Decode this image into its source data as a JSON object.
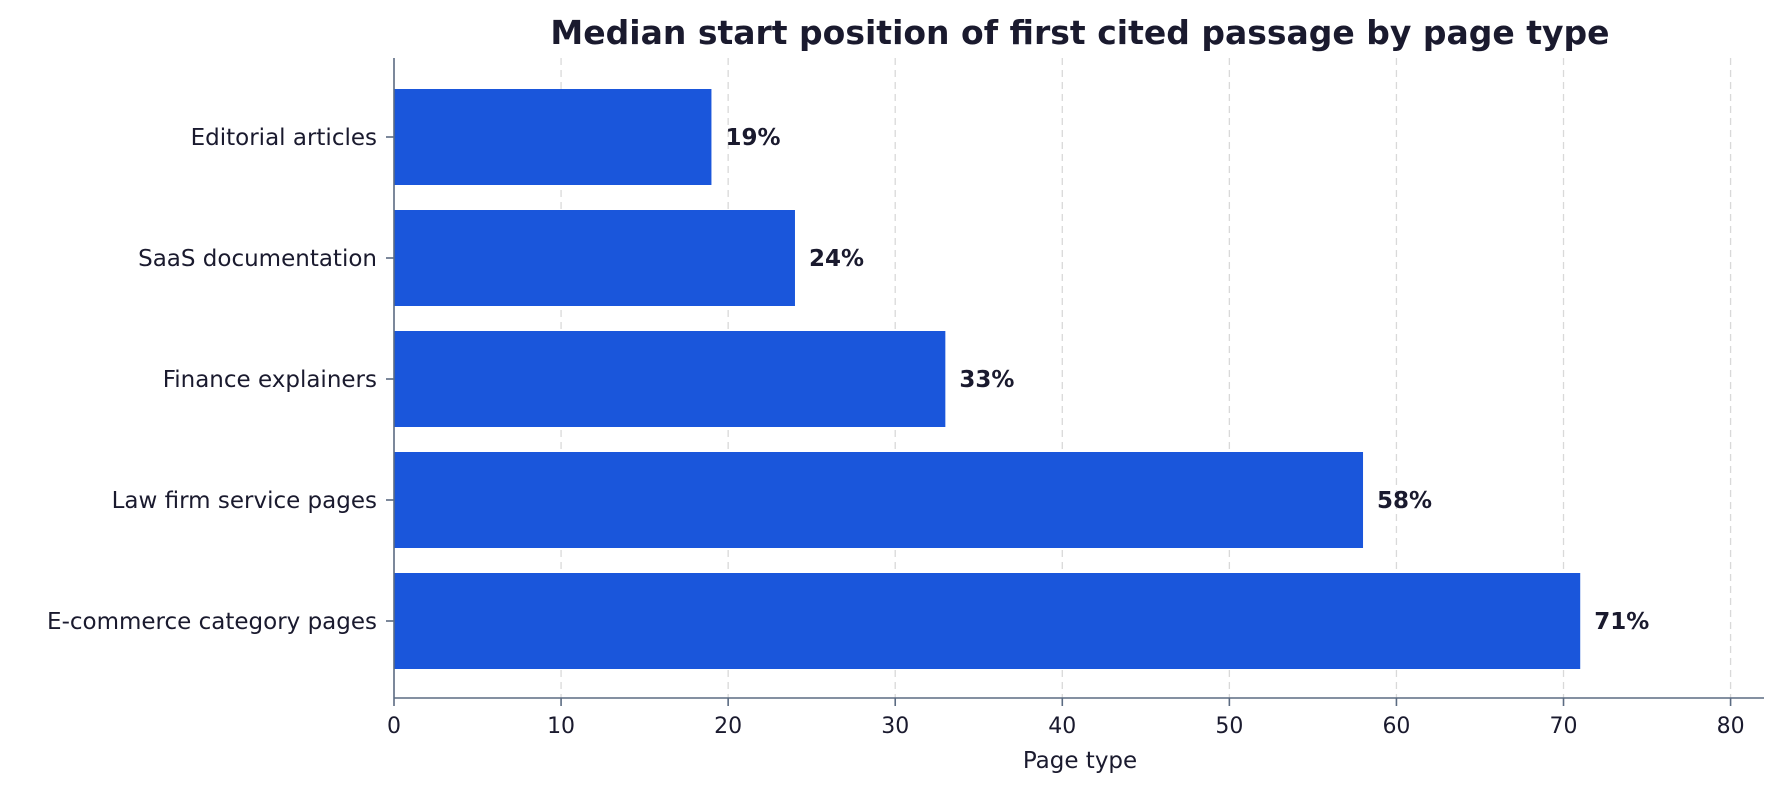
{
  "chart_data": {
    "type": "bar",
    "orientation": "horizontal",
    "title": "Median start position of first cited passage by page type",
    "xlabel": "Page type",
    "ylabel": "",
    "categories": [
      "Editorial articles",
      "SaaS documentation",
      "Finance explainers",
      "Law firm service pages",
      "E-commerce category pages"
    ],
    "values": [
      19,
      24,
      33,
      58,
      71
    ],
    "value_labels": [
      "19%",
      "24%",
      "33%",
      "58%",
      "71%"
    ],
    "xlim": [
      0,
      82
    ],
    "xticks": [
      0,
      10,
      20,
      30,
      40,
      50,
      60,
      70,
      80
    ],
    "xtick_labels": [
      "0",
      "10",
      "20",
      "30",
      "40",
      "50",
      "60",
      "70",
      "80"
    ],
    "grid": "x-dashed",
    "legend": "none",
    "bar_color": "#1a56db"
  }
}
